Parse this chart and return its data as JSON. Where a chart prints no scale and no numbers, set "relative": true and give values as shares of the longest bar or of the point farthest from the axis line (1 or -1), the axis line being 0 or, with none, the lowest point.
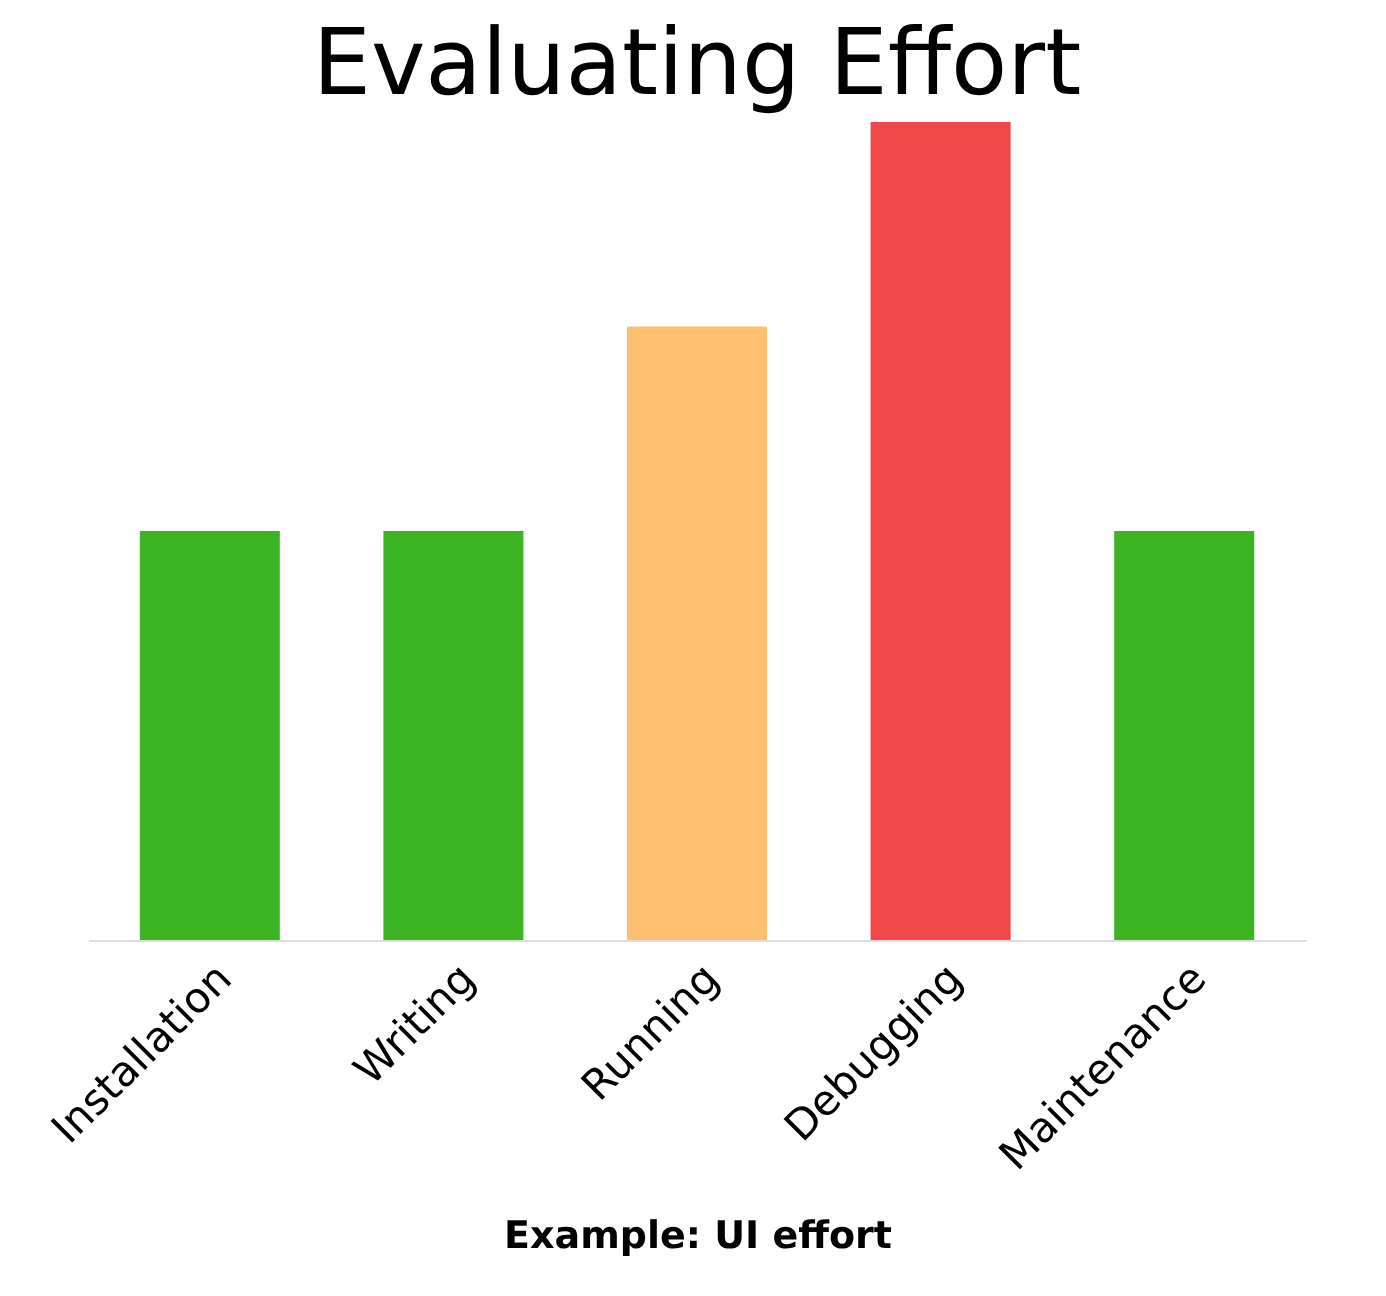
{
  "chart_data": {
    "type": "bar",
    "title": "Evaluating Effort",
    "xlabel": "Example: UI effort",
    "categories": [
      "Installation",
      "Writing",
      "Running",
      "Debugging",
      "Maintenance"
    ],
    "values": [
      0.5,
      0.5,
      0.75,
      1,
      0.5
    ],
    "colors": [
      "#3cb424",
      "#3cb424",
      "#fcc070",
      "#f04848",
      "#3cb424"
    ],
    "relative": true,
    "grid": false
  }
}
